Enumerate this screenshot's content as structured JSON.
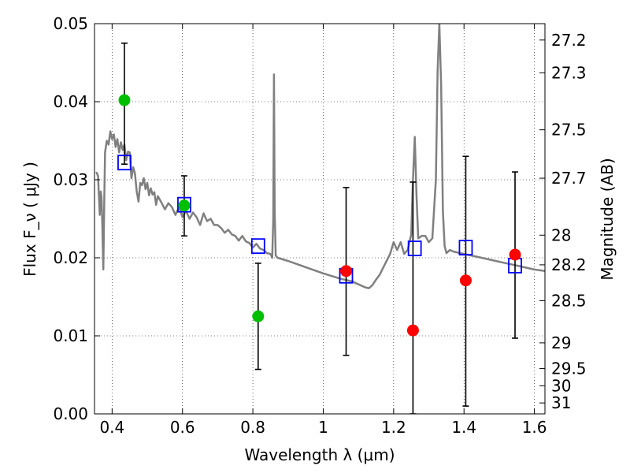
{
  "chart_data": {
    "type": "scatter",
    "title": "",
    "xlabel": "Wavelength  λ (μm)",
    "ylabel": "Flux  F_ν  ( μJy )",
    "ylabel_right": "Magnitude (AB)",
    "xlim": [
      0.35,
      1.63
    ],
    "ylim": [
      0.0,
      0.05
    ],
    "grid": true,
    "x_ticks": [
      0.4,
      0.6,
      0.8,
      1.0,
      1.2,
      1.4,
      1.6
    ],
    "x_tick_labels": [
      "0.4",
      "0.6",
      "0.8",
      "1",
      "1.2",
      "1.4",
      "1.6"
    ],
    "y_ticks": [
      0.0,
      0.01,
      0.02,
      0.03,
      0.04,
      0.05
    ],
    "y_tick_labels": [
      "0.00",
      "0.01",
      "0.02",
      "0.03",
      "0.04",
      "0.05"
    ],
    "right_ticks": [
      {
        "label": "27.2",
        "flux": 0.0479
      },
      {
        "label": "27.3",
        "flux": 0.0437
      },
      {
        "label": "27.5",
        "flux": 0.0364
      },
      {
        "label": "27.7",
        "flux": 0.0302
      },
      {
        "label": "28",
        "flux": 0.0229
      },
      {
        "label": "28.2",
        "flux": 0.0191
      },
      {
        "label": "28.5",
        "flux": 0.0145
      },
      {
        "label": "29",
        "flux": 0.0091
      },
      {
        "label": "29.5",
        "flux": 0.0058
      },
      {
        "label": "30",
        "flux": 0.0036
      },
      {
        "label": "31",
        "flux": 0.0014
      }
    ],
    "series": [
      {
        "kind": "line",
        "color": "#808080",
        "x": [
          0.355,
          0.36,
          0.363,
          0.365,
          0.368,
          0.37,
          0.372,
          0.375,
          0.378,
          0.38,
          0.385,
          0.39,
          0.395,
          0.4,
          0.405,
          0.41,
          0.415,
          0.42,
          0.425,
          0.43,
          0.435,
          0.44,
          0.445,
          0.45,
          0.455,
          0.46,
          0.465,
          0.47,
          0.475,
          0.48,
          0.485,
          0.49,
          0.495,
          0.5,
          0.505,
          0.51,
          0.515,
          0.52,
          0.525,
          0.53,
          0.54,
          0.55,
          0.56,
          0.57,
          0.58,
          0.59,
          0.6,
          0.61,
          0.62,
          0.63,
          0.64,
          0.65,
          0.66,
          0.67,
          0.68,
          0.69,
          0.7,
          0.71,
          0.72,
          0.73,
          0.74,
          0.75,
          0.76,
          0.77,
          0.78,
          0.79,
          0.8,
          0.81,
          0.82,
          0.83,
          0.84,
          0.85,
          0.855,
          0.858,
          0.86,
          0.862,
          0.865,
          0.87,
          0.9,
          0.95,
          1.0,
          1.05,
          1.08,
          1.1,
          1.12,
          1.13,
          1.14,
          1.15,
          1.16,
          1.17,
          1.18,
          1.19,
          1.2,
          1.21,
          1.22,
          1.23,
          1.24,
          1.25,
          1.255,
          1.26,
          1.265,
          1.27,
          1.28,
          1.29,
          1.3,
          1.31,
          1.32,
          1.325,
          1.33,
          1.335,
          1.34,
          1.345,
          1.35,
          1.36,
          1.37,
          1.4,
          1.45,
          1.5,
          1.55,
          1.6,
          1.63
        ],
        "y": [
          0.031,
          0.0305,
          0.0275,
          0.0255,
          0.0285,
          0.0278,
          0.0248,
          0.0185,
          0.028,
          0.0335,
          0.035,
          0.0345,
          0.0362,
          0.0352,
          0.0358,
          0.0342,
          0.0352,
          0.0335,
          0.0348,
          0.0338,
          0.0345,
          0.0325,
          0.0336,
          0.0335,
          0.0302,
          0.0316,
          0.0308,
          0.0285,
          0.0272,
          0.0296,
          0.0293,
          0.0302,
          0.0288,
          0.0296,
          0.028,
          0.0289,
          0.0281,
          0.0284,
          0.0268,
          0.0279,
          0.0271,
          0.0262,
          0.027,
          0.0265,
          0.0255,
          0.0265,
          0.0252,
          0.026,
          0.025,
          0.0258,
          0.0252,
          0.0242,
          0.0257,
          0.0247,
          0.025,
          0.0242,
          0.0242,
          0.0238,
          0.0232,
          0.0236,
          0.023,
          0.0228,
          0.0222,
          0.0228,
          0.0221,
          0.0219,
          0.0213,
          0.0218,
          0.0212,
          0.021,
          0.0206,
          0.0205,
          0.02,
          0.025,
          0.0435,
          0.026,
          0.0203,
          0.02,
          0.0196,
          0.0188,
          0.018,
          0.0173,
          0.017,
          0.0166,
          0.0162,
          0.0161,
          0.0165,
          0.0172,
          0.0178,
          0.0187,
          0.0196,
          0.0205,
          0.022,
          0.021,
          0.022,
          0.0205,
          0.021,
          0.023,
          0.03,
          0.0355,
          0.028,
          0.0225,
          0.0228,
          0.0228,
          0.022,
          0.0225,
          0.03,
          0.044,
          0.05,
          0.042,
          0.026,
          0.0215,
          0.0206,
          0.021,
          0.0208,
          0.0205,
          0.02,
          0.0195,
          0.019,
          0.0185,
          0.0183
        ]
      },
      {
        "kind": "errorbar",
        "color": "#000000",
        "x": [
          0.435,
          0.605,
          0.815,
          1.065,
          1.255,
          1.405,
          1.545
        ],
        "low": [
          0.032,
          0.0228,
          0.0057,
          0.0075,
          0.0,
          0.001,
          0.0097
        ],
        "high": [
          0.0475,
          0.0305,
          0.0193,
          0.029,
          0.0297,
          0.033,
          0.031
        ]
      },
      {
        "kind": "points",
        "marker": "square",
        "color": "#0000ff",
        "x": [
          0.435,
          0.605,
          0.815,
          1.065,
          1.26,
          1.405,
          1.545
        ],
        "y": [
          0.0322,
          0.0268,
          0.0215,
          0.0177,
          0.0212,
          0.0213,
          0.019
        ]
      },
      {
        "kind": "points",
        "marker": "circle",
        "color": "#00bf00",
        "x": [
          0.435,
          0.605,
          0.815
        ],
        "y": [
          0.0402,
          0.0267,
          0.0125
        ]
      },
      {
        "kind": "points",
        "marker": "circle",
        "color": "#ff0000",
        "x": [
          1.065,
          1.255,
          1.405,
          1.545
        ],
        "y": [
          0.0183,
          0.0107,
          0.0171,
          0.0204
        ]
      }
    ]
  }
}
